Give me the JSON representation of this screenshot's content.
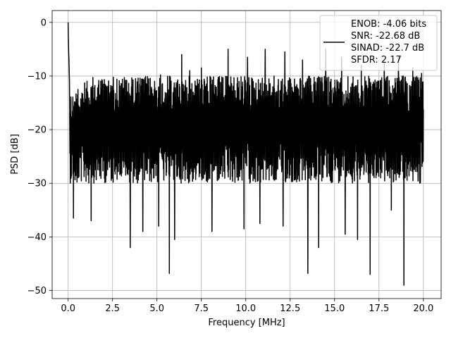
{
  "chart_data": {
    "type": "line",
    "title": "",
    "xlabel": "Frequency [MHz]",
    "ylabel": "PSD [dB]",
    "xlim": [
      -0.9,
      21.0
    ],
    "ylim": [
      -51.5,
      2.2
    ],
    "xticks": [
      0.0,
      2.5,
      5.0,
      7.5,
      10.0,
      12.5,
      15.0,
      17.5,
      20.0
    ],
    "xtick_labels": [
      "0.0",
      "2.5",
      "5.0",
      "7.5",
      "10.0",
      "12.5",
      "15.0",
      "17.5",
      "20.0"
    ],
    "yticks": [
      0,
      -10,
      -20,
      -30,
      -40,
      -50
    ],
    "ytick_labels": [
      "0",
      "−10",
      "−20",
      "−30",
      "−40",
      "−50"
    ],
    "grid": true,
    "legend_position": "top-right",
    "legend_lines": [
      "ENOB: -4.06 bits",
      "SNR: -22.68 dB",
      "SINAD: -22.7 dB",
      "SFDR: 2.17"
    ],
    "line_color": "#000000",
    "series": [
      {
        "x_start": 0.0,
        "x_end": 20.0,
        "initial_values": [
          0.0,
          -3.5,
          -5.5,
          -7.0,
          -9.0,
          -11.0
        ],
        "typical_upper_db": -10,
        "typical_lower_db": -28,
        "upper_peaks": [
          {
            "x": 0.55,
            "y": -12.5
          },
          {
            "x": 1.1,
            "y": -13.0
          },
          {
            "x": 2.4,
            "y": -11.8
          },
          {
            "x": 3.8,
            "y": -10.5
          },
          {
            "x": 5.2,
            "y": -9.8
          },
          {
            "x": 6.4,
            "y": -6.0
          },
          {
            "x": 6.85,
            "y": -9.0
          },
          {
            "x": 7.5,
            "y": -8.5
          },
          {
            "x": 9.0,
            "y": -5.0
          },
          {
            "x": 10.1,
            "y": -6.5
          },
          {
            "x": 11.1,
            "y": -5.0
          },
          {
            "x": 12.2,
            "y": -5.5
          },
          {
            "x": 13.2,
            "y": -7.0
          },
          {
            "x": 14.5,
            "y": -5.0
          },
          {
            "x": 15.4,
            "y": -6.5
          },
          {
            "x": 16.5,
            "y": -8.0
          },
          {
            "x": 17.8,
            "y": -7.5
          },
          {
            "x": 18.6,
            "y": -6.5
          },
          {
            "x": 19.4,
            "y": -8.5
          },
          {
            "x": 19.9,
            "y": -9.5
          }
        ],
        "dips": [
          {
            "x": 0.3,
            "y": -36.5
          },
          {
            "x": 1.3,
            "y": -37.0
          },
          {
            "x": 2.4,
            "y": -34.0
          },
          {
            "x": 3.5,
            "y": -42.0
          },
          {
            "x": 4.2,
            "y": -39.0
          },
          {
            "x": 5.1,
            "y": -38.0
          },
          {
            "x": 5.7,
            "y": -46.8
          },
          {
            "x": 6.0,
            "y": -40.5
          },
          {
            "x": 7.5,
            "y": -43.0
          },
          {
            "x": 8.1,
            "y": -39.0
          },
          {
            "x": 9.9,
            "y": -38.5
          },
          {
            "x": 10.8,
            "y": -37.5
          },
          {
            "x": 12.1,
            "y": -38.0
          },
          {
            "x": 13.5,
            "y": -46.8
          },
          {
            "x": 14.1,
            "y": -42.0
          },
          {
            "x": 15.6,
            "y": -39.5
          },
          {
            "x": 16.3,
            "y": -40.5
          },
          {
            "x": 17.0,
            "y": -47.0
          },
          {
            "x": 18.2,
            "y": -35.0
          },
          {
            "x": 18.9,
            "y": -49.0
          },
          {
            "x": 19.8,
            "y": -30.0
          }
        ]
      }
    ]
  }
}
